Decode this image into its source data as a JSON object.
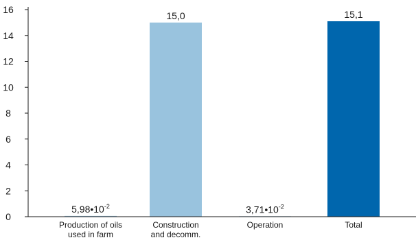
{
  "chart_data": {
    "type": "bar",
    "title": "",
    "xlabel": "",
    "ylabel": "",
    "ylim": [
      0,
      16
    ],
    "yticks": [
      "0",
      "2",
      "4",
      "6",
      "8",
      "10",
      "12",
      "14",
      "16"
    ],
    "grid": false,
    "categories": [
      [
        "Production of oils",
        "used in farm"
      ],
      [
        "Construction",
        "and decomm."
      ],
      [
        "Operation"
      ],
      [
        "Total"
      ]
    ],
    "values": [
      0.0598,
      15.0,
      0.0371,
      15.1
    ],
    "value_labels": [
      {
        "mantissa": "5,98•10",
        "exponent": "-2"
      },
      {
        "mantissa": "15,0",
        "exponent": ""
      },
      {
        "mantissa": "3,71•10",
        "exponent": "-2"
      },
      {
        "mantissa": "15,1",
        "exponent": ""
      }
    ],
    "colors": [
      "#99c3de",
      "#99c3de",
      "#99c3de",
      "#0066ad"
    ]
  }
}
